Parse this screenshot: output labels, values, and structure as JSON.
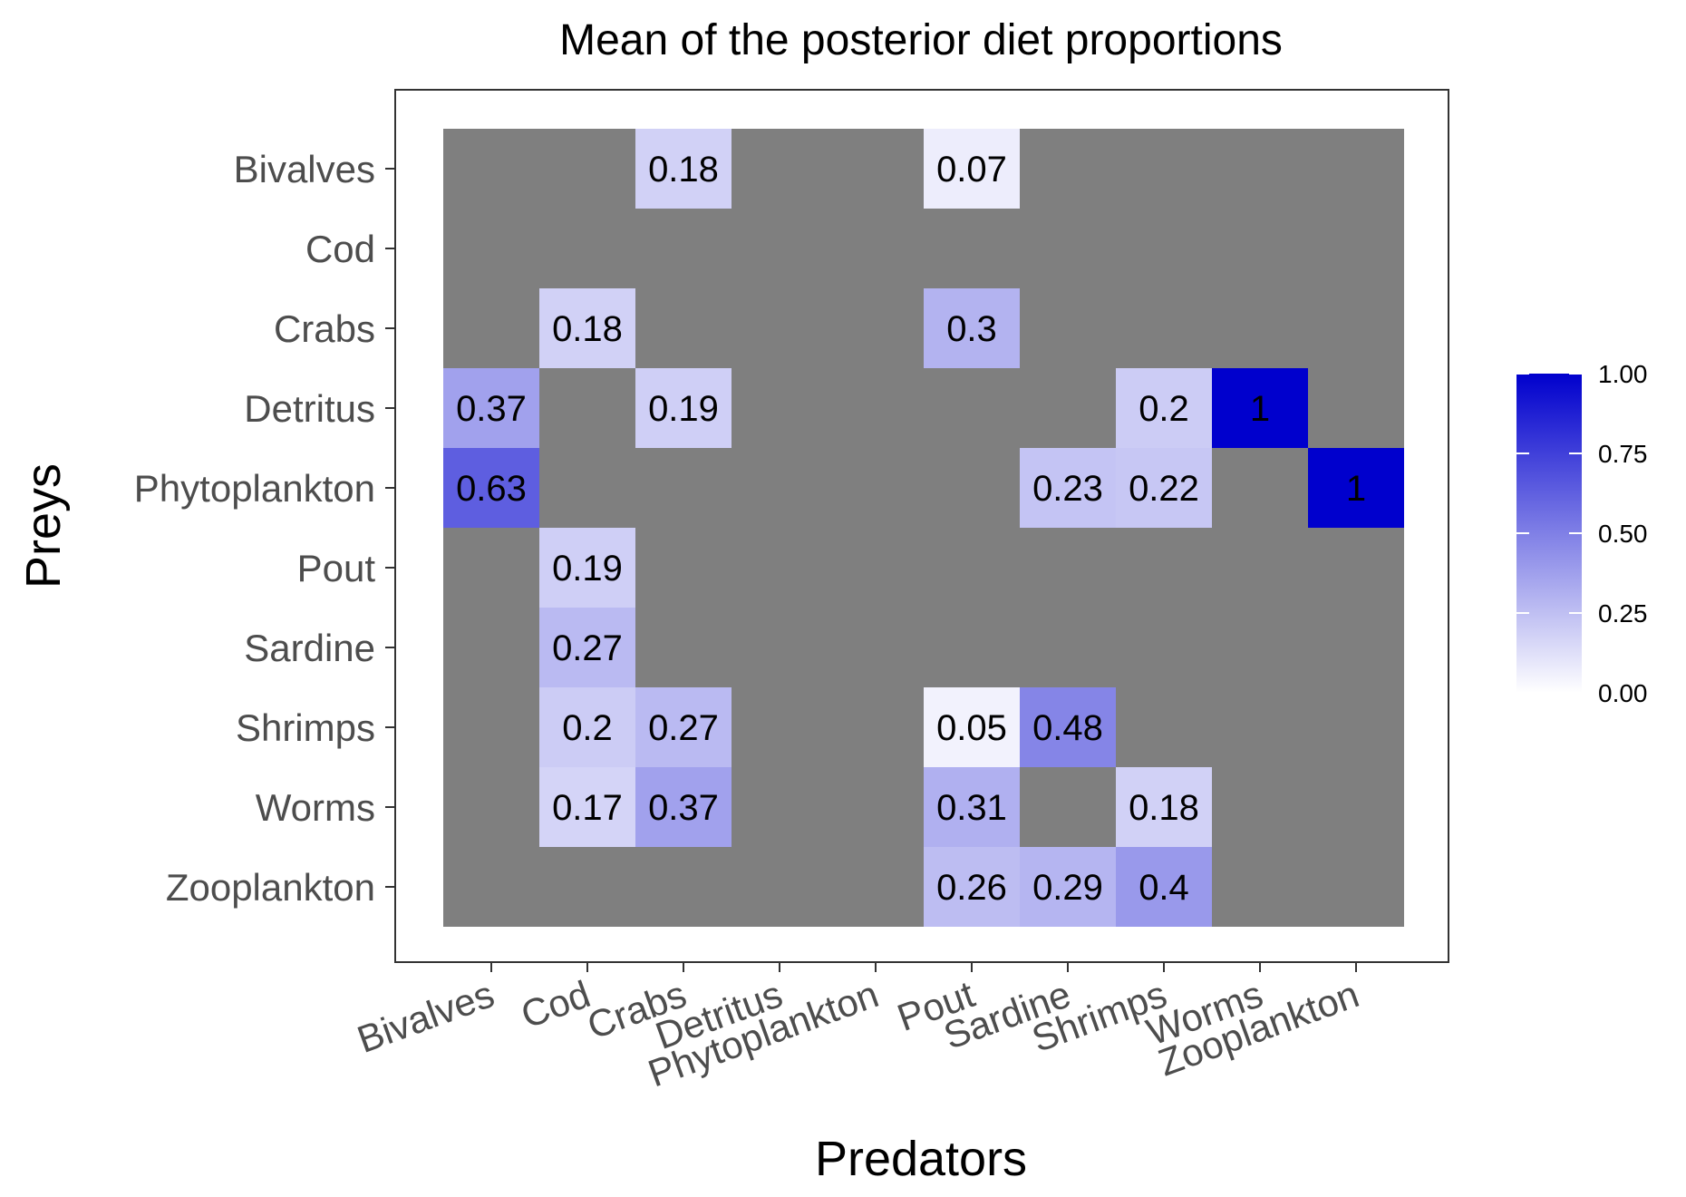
{
  "chart_data": {
    "type": "heatmap",
    "title": "Mean of the posterior diet proportions",
    "xlabel": "Predators",
    "ylabel": "Preys",
    "x_categories": [
      "Bivalves",
      "Cod",
      "Crabs",
      "Detritus",
      "Phytoplankton",
      "Pout",
      "Sardine",
      "Shrimps",
      "Worms",
      "Zooplankton"
    ],
    "y_categories": [
      "Bivalves",
      "Cod",
      "Crabs",
      "Detritus",
      "Phytoplankton",
      "Pout",
      "Sardine",
      "Shrimps",
      "Worms",
      "Zooplankton"
    ],
    "cells": [
      {
        "x": "Crabs",
        "y": "Bivalves",
        "value": 0.18,
        "label": "0.18"
      },
      {
        "x": "Pout",
        "y": "Bivalves",
        "value": 0.07,
        "label": "0.07"
      },
      {
        "x": "Cod",
        "y": "Crabs",
        "value": 0.18,
        "label": "0.18"
      },
      {
        "x": "Pout",
        "y": "Crabs",
        "value": 0.3,
        "label": "0.3"
      },
      {
        "x": "Bivalves",
        "y": "Detritus",
        "value": 0.37,
        "label": "0.37"
      },
      {
        "x": "Crabs",
        "y": "Detritus",
        "value": 0.19,
        "label": "0.19"
      },
      {
        "x": "Shrimps",
        "y": "Detritus",
        "value": 0.2,
        "label": "0.2"
      },
      {
        "x": "Worms",
        "y": "Detritus",
        "value": 1,
        "label": "1"
      },
      {
        "x": "Bivalves",
        "y": "Phytoplankton",
        "value": 0.63,
        "label": "0.63"
      },
      {
        "x": "Sardine",
        "y": "Phytoplankton",
        "value": 0.23,
        "label": "0.23"
      },
      {
        "x": "Shrimps",
        "y": "Phytoplankton",
        "value": 0.22,
        "label": "0.22"
      },
      {
        "x": "Zooplankton",
        "y": "Phytoplankton",
        "value": 1,
        "label": "1"
      },
      {
        "x": "Cod",
        "y": "Pout",
        "value": 0.19,
        "label": "0.19"
      },
      {
        "x": "Cod",
        "y": "Sardine",
        "value": 0.27,
        "label": "0.27"
      },
      {
        "x": "Cod",
        "y": "Shrimps",
        "value": 0.2,
        "label": "0.2"
      },
      {
        "x": "Crabs",
        "y": "Shrimps",
        "value": 0.27,
        "label": "0.27"
      },
      {
        "x": "Pout",
        "y": "Shrimps",
        "value": 0.05,
        "label": "0.05"
      },
      {
        "x": "Sardine",
        "y": "Shrimps",
        "value": 0.48,
        "label": "0.48"
      },
      {
        "x": "Cod",
        "y": "Worms",
        "value": 0.17,
        "label": "0.17"
      },
      {
        "x": "Crabs",
        "y": "Worms",
        "value": 0.37,
        "label": "0.37"
      },
      {
        "x": "Pout",
        "y": "Worms",
        "value": 0.31,
        "label": "0.31"
      },
      {
        "x": "Shrimps",
        "y": "Worms",
        "value": 0.18,
        "label": "0.18"
      },
      {
        "x": "Pout",
        "y": "Zooplankton",
        "value": 0.26,
        "label": "0.26"
      },
      {
        "x": "Sardine",
        "y": "Zooplankton",
        "value": 0.29,
        "label": "0.29"
      },
      {
        "x": "Shrimps",
        "y": "Zooplankton",
        "value": 0.4,
        "label": "0.4"
      }
    ],
    "missing_color": "#7f7f7f",
    "color_scale": {
      "low": "#ffffff",
      "high": "#0000cd",
      "range": [
        0,
        1
      ]
    },
    "legend": {
      "position": "right",
      "ticks": [
        0,
        0.25,
        0.5,
        0.75,
        1
      ],
      "tick_labels": [
        "0.00",
        "0.25",
        "0.50",
        "0.75",
        "1.00"
      ]
    },
    "x_tick_rotation_deg": -20
  }
}
